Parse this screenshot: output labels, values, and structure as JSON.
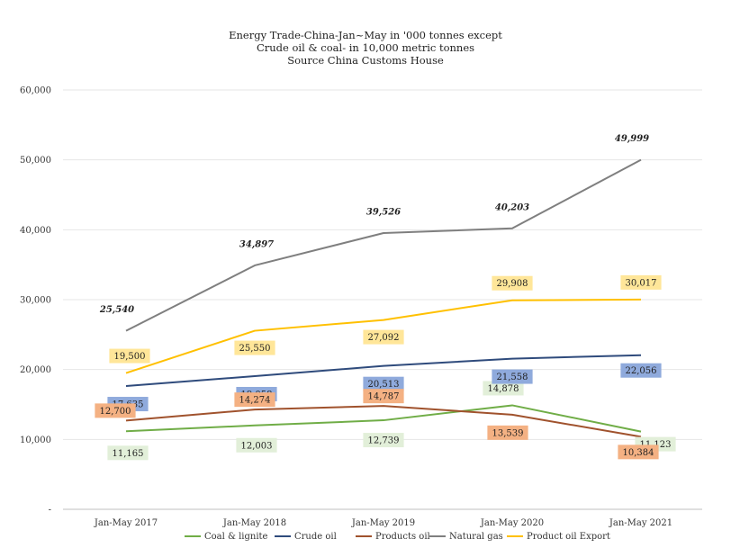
{
  "chart_data": {
    "type": "line",
    "title": [
      "Energy Trade-China-Jan~May in '000 tonnes except",
      "Crude oil & coal-  in 10,000 metric tonnes",
      "Source China Customs House"
    ],
    "categories": [
      "Jan-May 2017",
      "Jan-May 2018",
      "Jan-May 2019",
      "Jan-May 2020",
      "Jan-May 2021"
    ],
    "ylim": [
      0,
      60000
    ],
    "yticks": [
      "-",
      "10,000",
      "20,000",
      "30,000",
      "40,000",
      "50,000",
      "60,000"
    ],
    "grid": true,
    "legend_position": "bottom",
    "series": [
      {
        "name": "Coal & lignite",
        "color": "#70ad47",
        "label_bg": "#e2efd9",
        "label_pos": "below",
        "values": [
          11165,
          12003,
          12739,
          14878,
          11123
        ],
        "labels": [
          "11,165",
          "12,003",
          "12,739",
          "14,878",
          "11,123"
        ]
      },
      {
        "name": "Crude oil",
        "color": "#2f4b7c",
        "label_bg": "#8faadc",
        "label_pos": "below",
        "values": [
          17635,
          19058,
          20513,
          21558,
          22056
        ],
        "labels": [
          "17,635",
          "19,058",
          "20,513",
          "21,558",
          "22,056"
        ]
      },
      {
        "name": "Products oil",
        "color": "#a0522d",
        "label_bg": "#f4b183",
        "label_pos": "mixed",
        "values": [
          12700,
          14274,
          14787,
          13539,
          10384
        ],
        "labels": [
          "12,700",
          "14,274",
          "14,787",
          "13,539",
          "10,384"
        ]
      },
      {
        "name": "Natural gas",
        "color": "#7f7f7f",
        "label_bg": "",
        "label_pos": "above",
        "values": [
          25540,
          34897,
          39526,
          40203,
          49999
        ],
        "labels": [
          "25,540",
          "34,897",
          "39,526",
          "40,203",
          "49,999"
        ]
      },
      {
        "name": "Product oil Export",
        "color": "#ffc000",
        "label_bg": "#ffe699",
        "label_pos": "mixed",
        "values": [
          19500,
          25550,
          27092,
          29908,
          30017
        ],
        "labels": [
          "19,500",
          "25,550",
          "27,092",
          "29,908",
          "30,017"
        ]
      }
    ]
  }
}
